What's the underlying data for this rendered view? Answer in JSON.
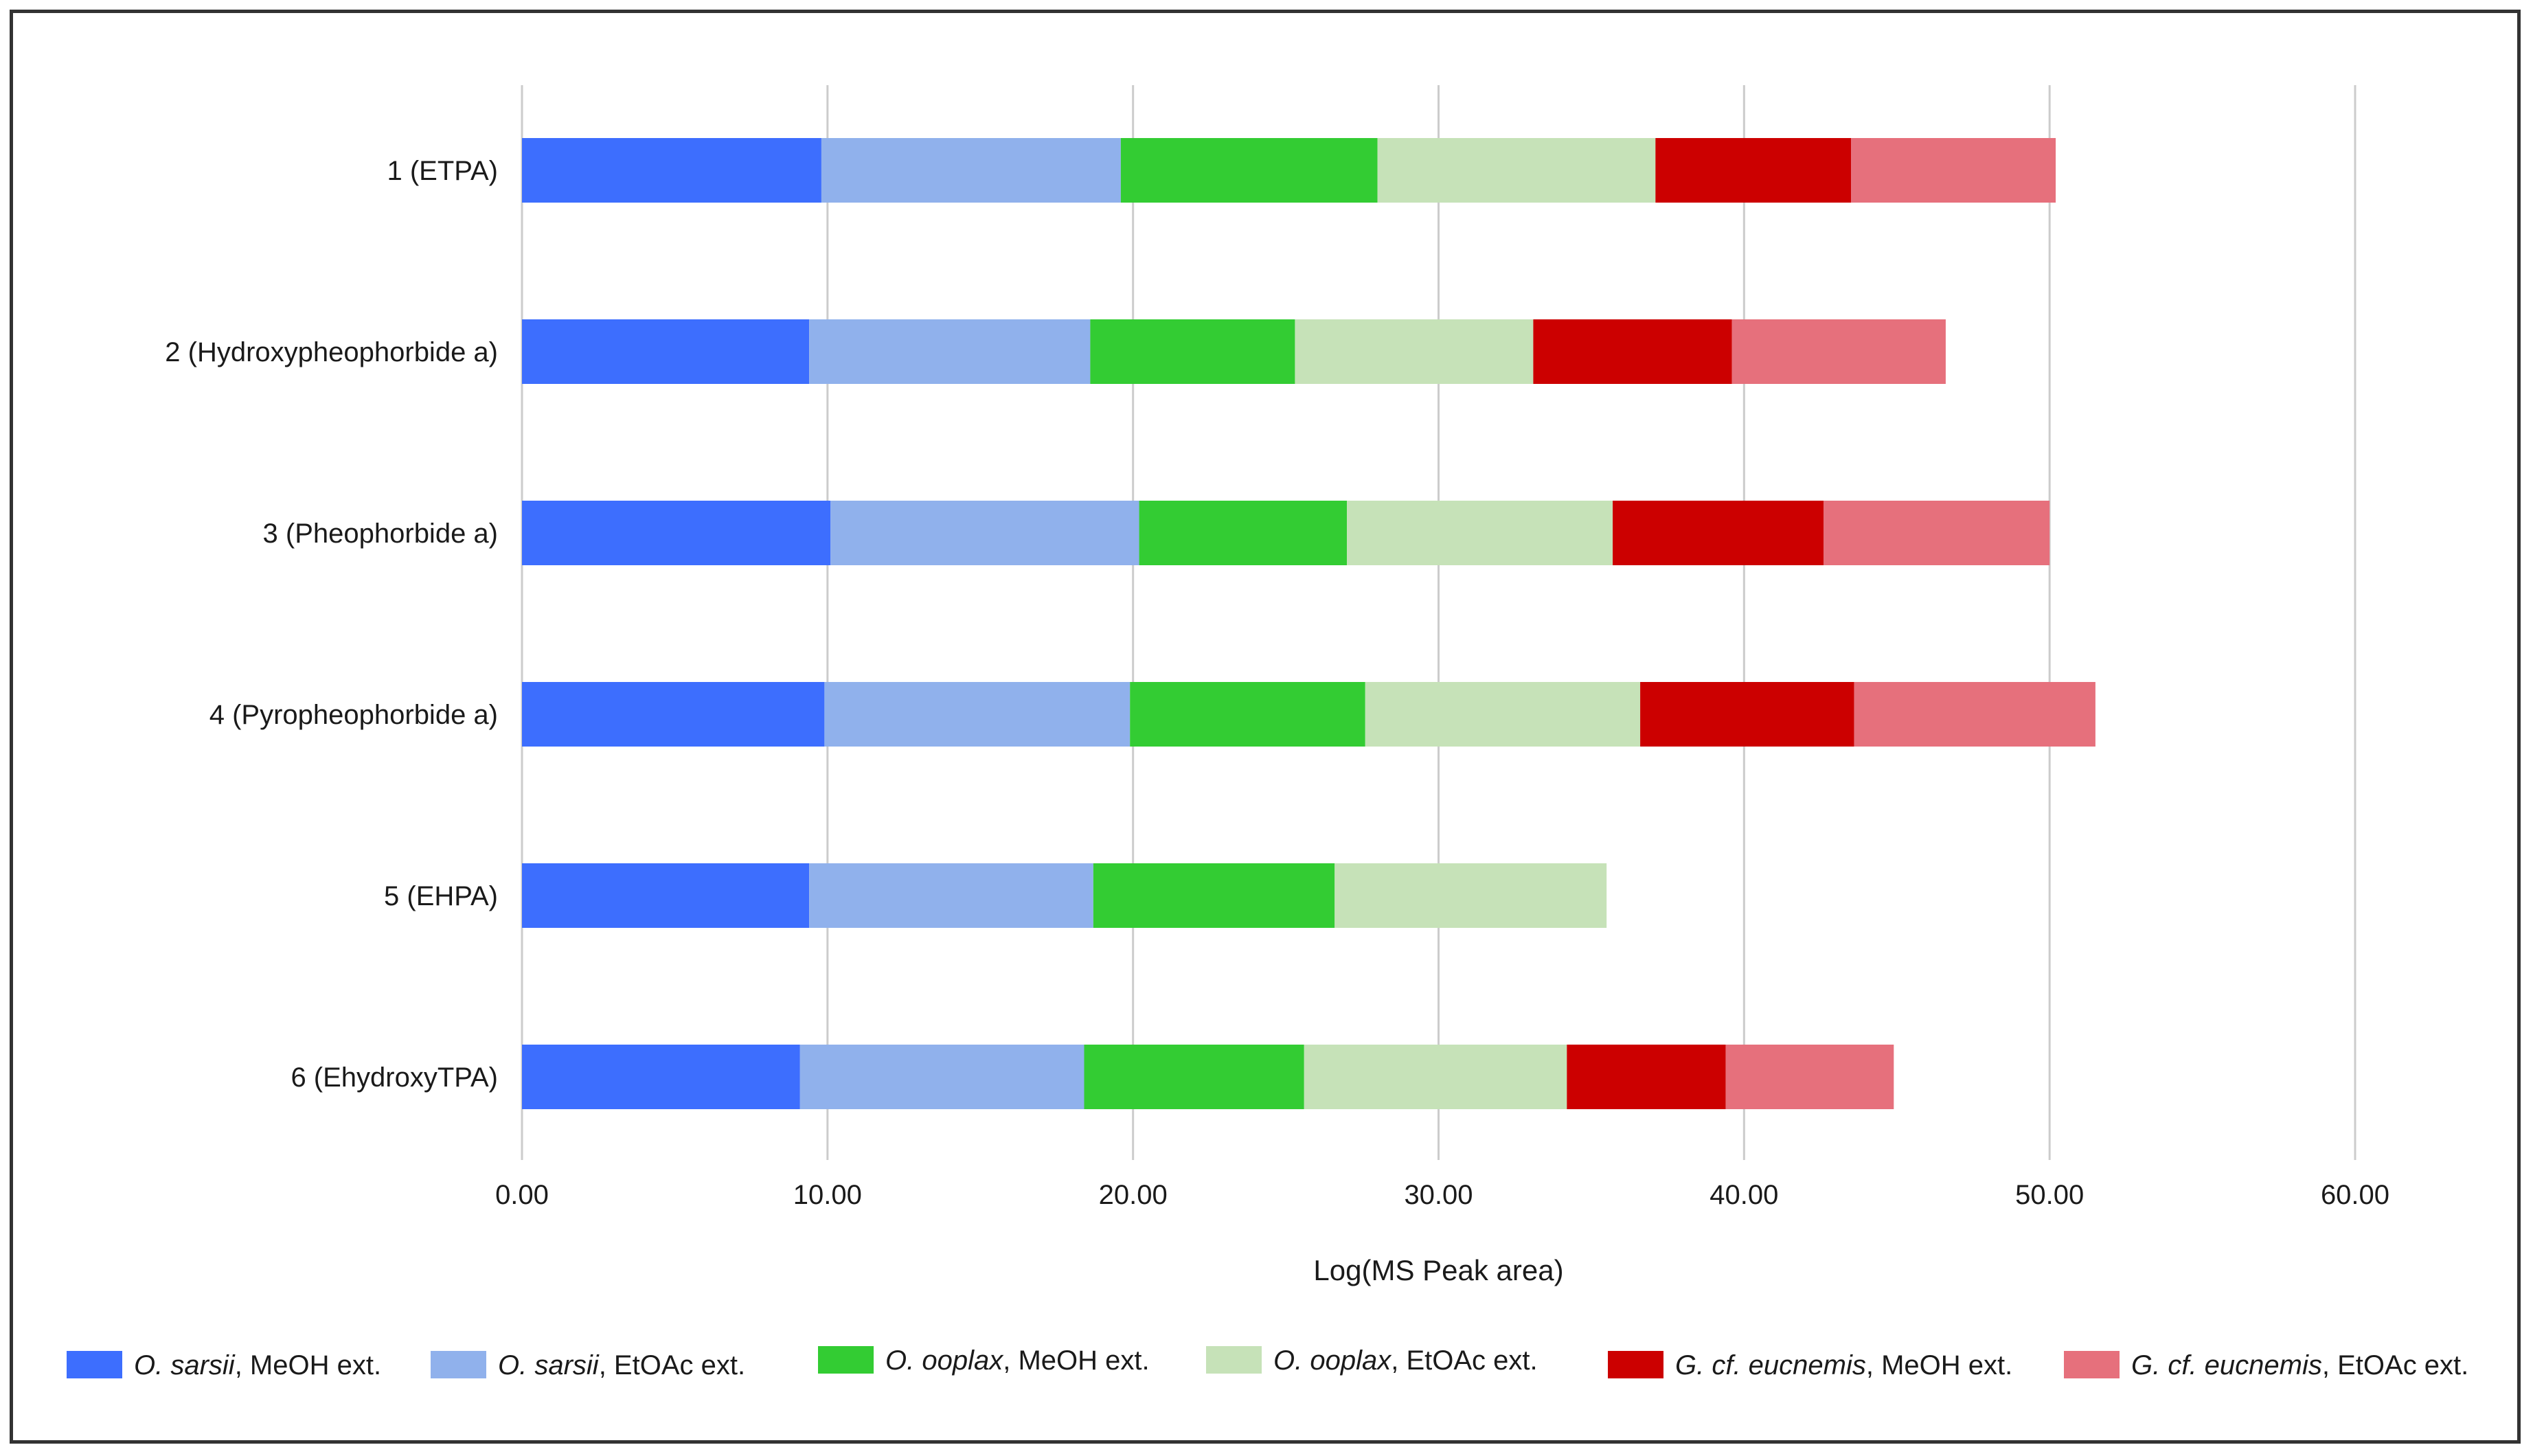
{
  "chart_data": {
    "type": "bar",
    "orientation": "horizontal",
    "stacked": true,
    "categories": [
      "1 (ETPA)",
      "2 (Hydroxypheophorbide a)",
      "3 (Pheophorbide a)",
      "4 (Pyropheophorbide a)",
      "5 (EHPA)",
      "6 (EhydroxyTPA)"
    ],
    "series": [
      {
        "name": "O. sarsii, MeOH ext.",
        "name_italic": "O. sarsii",
        "name_rest": ", MeOH ext.",
        "color": "#3d6efe",
        "values": [
          9.8,
          9.4,
          10.1,
          9.9,
          9.4,
          9.1
        ]
      },
      {
        "name": "O. sarsii, EtOAc ext.",
        "name_italic": "O. sarsii",
        "name_rest": ", EtOAc ext.",
        "color": "#90b1ec",
        "values": [
          9.8,
          9.2,
          10.1,
          10.0,
          9.3,
          9.3
        ]
      },
      {
        "name": "O. ooplax, MeOH ext.",
        "name_italic": "O. ooplax",
        "name_rest": ", MeOH ext.",
        "color": "#33cc33",
        "values": [
          8.4,
          6.7,
          6.8,
          7.7,
          7.9,
          7.2
        ]
      },
      {
        "name": "O. ooplax, EtOAc ext.",
        "name_italic": "O. ooplax",
        "name_rest": ", EtOAc ext.",
        "color": "#c6e2b8",
        "values": [
          9.1,
          7.8,
          8.7,
          9.0,
          8.9,
          8.6
        ]
      },
      {
        "name": "G. cf. eucnemis, MeOH ext.",
        "name_italic": "G. cf. eucnemis",
        "name_rest": ", MeOH ext.",
        "color": "#cc0000",
        "values": [
          6.4,
          6.5,
          6.9,
          7.0,
          0,
          5.2
        ]
      },
      {
        "name": "G. cf. eucnemis, EtOAc ext.",
        "name_italic": "G. cf. eucnemis",
        "name_rest": ", EtOAc ext.",
        "color": "#e6707c",
        "values": [
          6.7,
          7.0,
          7.4,
          7.9,
          0,
          5.5
        ]
      }
    ],
    "xlabel": "Log(MS Peak area)",
    "xlim": [
      0,
      60
    ],
    "xticks": [
      "0.00",
      "10.00",
      "20.00",
      "30.00",
      "40.00",
      "50.00",
      "60.00"
    ],
    "tick_values": [
      0,
      10,
      20,
      30,
      40,
      50,
      60
    ],
    "grid": "vertical",
    "legend_position": "bottom"
  }
}
